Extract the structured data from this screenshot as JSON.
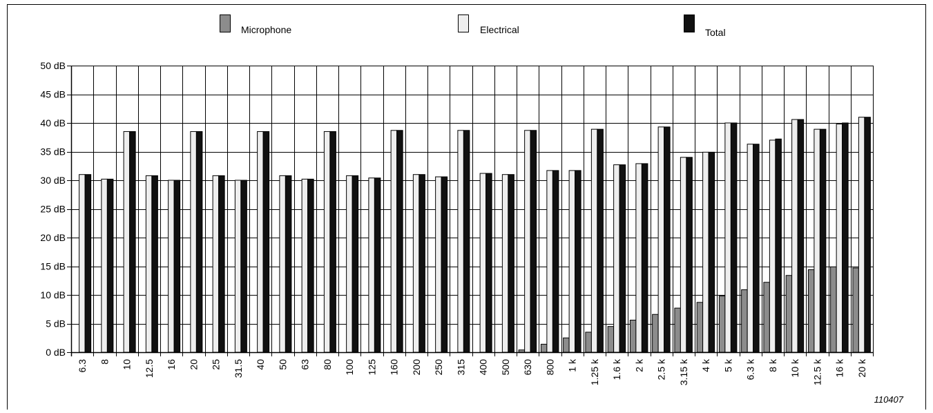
{
  "chart_data": {
    "type": "bar",
    "title": "",
    "xlabel": "",
    "ylabel": "",
    "ylim": [
      0,
      50
    ],
    "y_ticks": [
      "0 dB",
      "5 dB",
      "10 dB",
      "15 dB",
      "20 dB",
      "25 dB",
      "30 dB",
      "35 dB",
      "40 dB",
      "45 dB",
      "50 dB"
    ],
    "grid": true,
    "legend_position": "top",
    "categories": [
      "6.3",
      "8",
      "10",
      "12.5",
      "16",
      "20",
      "25",
      "31.5",
      "40",
      "50",
      "63",
      "80",
      "100",
      "125",
      "160",
      "200",
      "250",
      "315",
      "400",
      "500",
      "630",
      "800",
      "1 k",
      "1.25 k",
      "1.6 k",
      "2 k",
      "2.5 k",
      "3.15 k",
      "4 k",
      "5 k",
      "6.3 k",
      "8 k",
      "10 k",
      "12.5 k",
      "16 k",
      "20 k"
    ],
    "series": [
      {
        "name": "Microphone",
        "color": "#8c8c8c",
        "values": [
          0,
          0,
          0,
          0,
          0,
          0,
          0,
          0,
          0,
          0,
          0,
          0,
          0,
          0,
          0,
          0,
          0,
          0,
          0,
          0,
          0.4,
          1.4,
          2.5,
          3.5,
          4.5,
          5.6,
          6.6,
          7.7,
          8.7,
          9.8,
          10.9,
          12.2,
          13.4,
          14.4,
          14.9,
          14.7
        ]
      },
      {
        "name": "Electrical",
        "color": "#eeeeee",
        "values": [
          31.0,
          30.2,
          38.5,
          30.8,
          30.0,
          38.5,
          30.8,
          30.0,
          38.5,
          30.8,
          30.2,
          38.5,
          30.8,
          30.4,
          38.7,
          31.0,
          30.6,
          38.7,
          31.2,
          31.0,
          38.7,
          31.7,
          31.7,
          38.9,
          32.7,
          32.9,
          39.3,
          34.0,
          34.9,
          40.0,
          36.3,
          37.0,
          40.6,
          38.9,
          39.8,
          41.0
        ]
      },
      {
        "name": "Total",
        "color": "#111111",
        "values": [
          31.0,
          30.2,
          38.5,
          30.8,
          30.0,
          38.5,
          30.8,
          30.0,
          38.5,
          30.8,
          30.2,
          38.5,
          30.8,
          30.4,
          38.7,
          31.0,
          30.6,
          38.7,
          31.2,
          31.0,
          38.7,
          31.7,
          31.7,
          38.9,
          32.7,
          32.9,
          39.3,
          34.0,
          34.9,
          40.0,
          36.3,
          37.2,
          40.6,
          38.9,
          40.0,
          41.0
        ]
      }
    ],
    "annotation": "110407"
  }
}
